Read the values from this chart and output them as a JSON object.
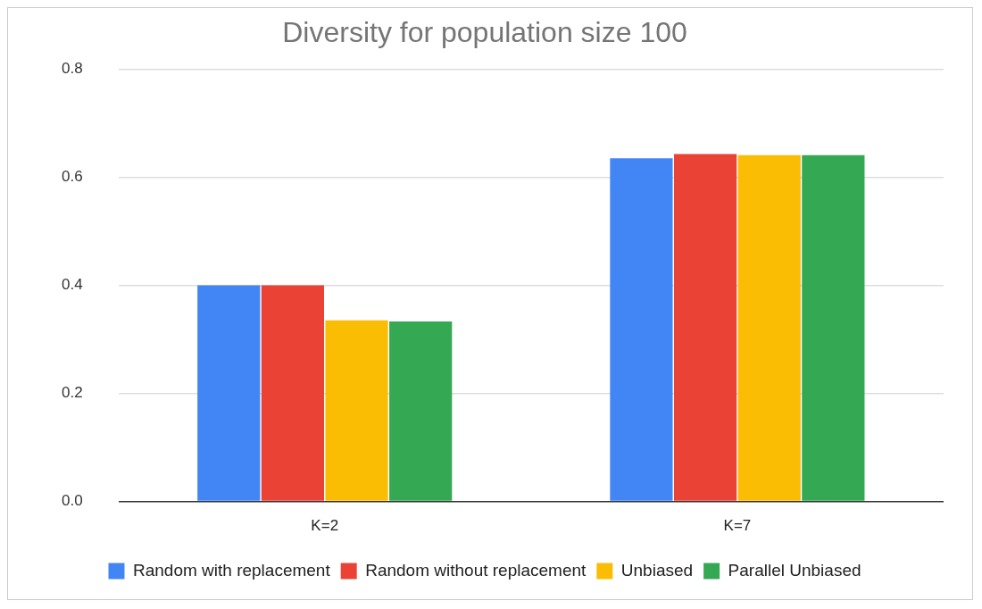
{
  "chart_data": {
    "type": "bar",
    "title": "Diversity for population size 100",
    "categories": [
      "K=2",
      "K=7"
    ],
    "series": [
      {
        "name": "Random with replacement",
        "color": "#4285f4",
        "values": [
          0.4,
          0.635
        ]
      },
      {
        "name": "Random without replacement",
        "color": "#ea4335",
        "values": [
          0.4,
          0.643
        ]
      },
      {
        "name": "Unbiased",
        "color": "#fbbc04",
        "values": [
          0.335,
          0.641
        ]
      },
      {
        "name": "Parallel Unbiased",
        "color": "#34a853",
        "values": [
          0.333,
          0.641
        ]
      }
    ],
    "ylim": [
      0,
      0.8
    ],
    "yticks": [
      {
        "value": 0,
        "label": "0.0"
      },
      {
        "value": 0.2,
        "label": "0.2"
      },
      {
        "value": 0.4,
        "label": "0.4"
      },
      {
        "value": 0.6,
        "label": "0.6"
      },
      {
        "value": 0.8,
        "label": "0.8"
      }
    ],
    "grid": "y",
    "legend": "bottom"
  }
}
